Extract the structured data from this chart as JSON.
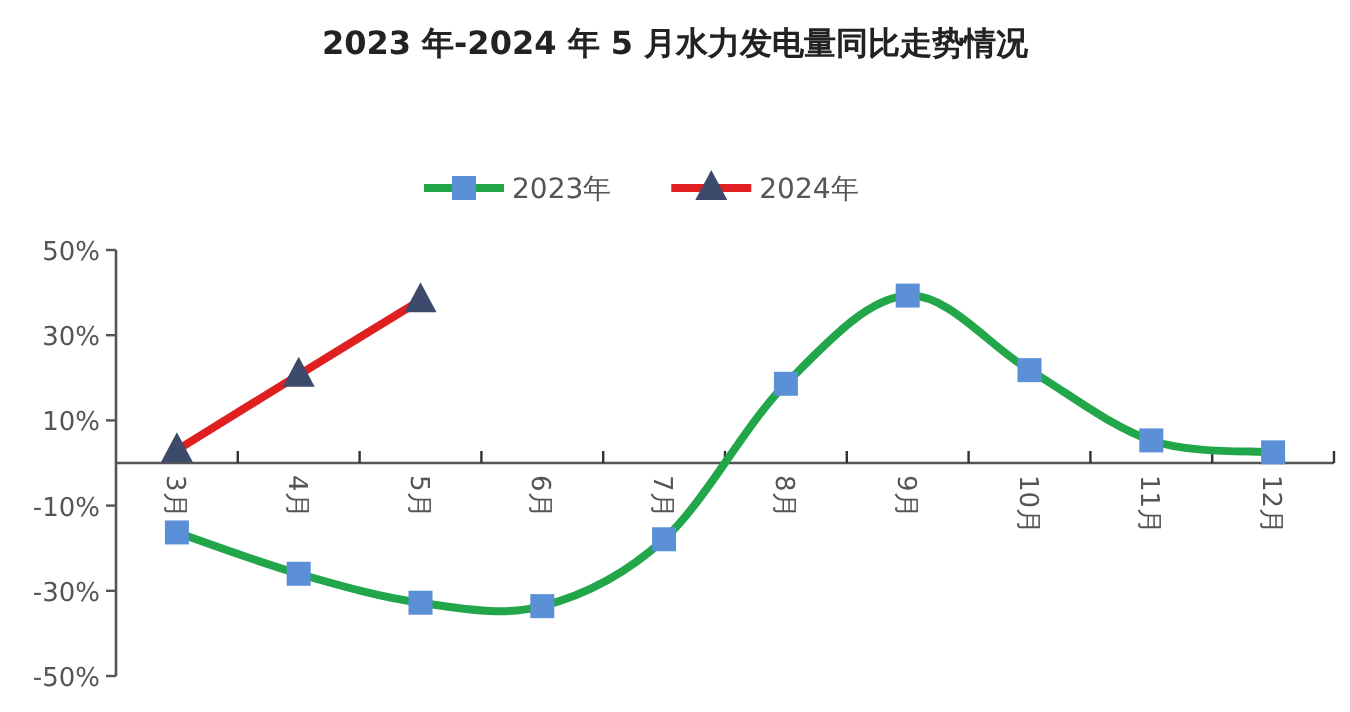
{
  "chart_data": {
    "type": "line",
    "title": "2023 年-2024 年 5 月水力发电量同比走势情况",
    "categories": [
      "3月",
      "4月",
      "5月",
      "6月",
      "7月",
      "8月",
      "9月",
      "10月",
      "11月",
      "12月"
    ],
    "series": [
      {
        "name": "2023年",
        "color": "#21a64a",
        "marker": "square",
        "values": [
          -16.3,
          -26,
          -32.8,
          -33.6,
          -17.9,
          18.6,
          39.3,
          21.8,
          5.3,
          2.5
        ]
      },
      {
        "name": "2024年",
        "color": "#e02020",
        "marker": "triangle",
        "values": [
          3,
          20.7,
          38.2,
          null,
          null,
          null,
          null,
          null,
          null,
          null
        ]
      }
    ],
    "ylim": [
      -50,
      50
    ],
    "yticks": [
      {
        "value": 50,
        "label": "50%"
      },
      {
        "value": 30,
        "label": "30%"
      },
      {
        "value": 10,
        "label": "10%"
      },
      {
        "value": -10,
        "label": "-10%"
      },
      {
        "value": -30,
        "label": "-30%"
      },
      {
        "value": -50,
        "label": "-50%"
      }
    ],
    "legend": "top"
  }
}
